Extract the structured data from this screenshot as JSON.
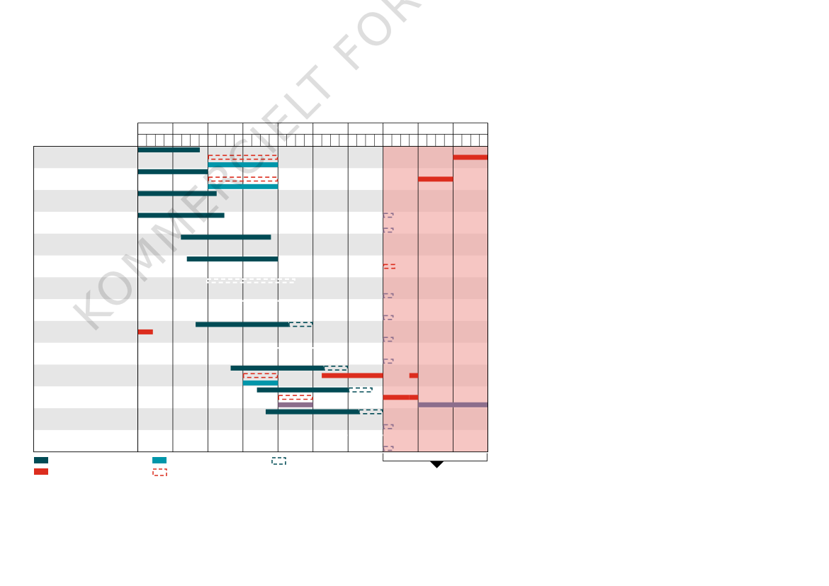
{
  "chart_data": {
    "type": "gantt",
    "title": "",
    "watermark": "KOMMERCIELT FORTROLIGT",
    "period_count": 10,
    "subperiods_per_period": 4,
    "forecast_start_period": 7,
    "period_labels": [],
    "row_labels": [],
    "colors": {
      "dark_teal": "#004b55",
      "light_teal": "#0096aa",
      "red": "#dc2d1e",
      "purple": "#8c6e8c",
      "row_stripe": "#e6e6e6",
      "forecast_shade": "#f0a09b"
    },
    "rows": [
      {
        "bars": [
          {
            "start": 0,
            "end": 1.77,
            "style": "solid",
            "color": "dark_teal",
            "lane": 0
          },
          {
            "start": 2,
            "end": 4,
            "style": "dashed",
            "color": "red",
            "lane": 1
          },
          {
            "start": 9,
            "end": 10,
            "style": "solid",
            "color": "red",
            "lane": 1
          },
          {
            "start": 2,
            "end": 4,
            "style": "solid",
            "color": "light_teal",
            "lane": 2
          }
        ]
      },
      {
        "bars": [
          {
            "start": 0,
            "end": 2,
            "style": "solid",
            "color": "dark_teal",
            "lane": 0
          },
          {
            "start": 2,
            "end": 4,
            "style": "dashed",
            "color": "red",
            "lane": 1
          },
          {
            "start": 8,
            "end": 9,
            "style": "solid",
            "color": "red",
            "lane": 1
          },
          {
            "start": 2,
            "end": 4,
            "style": "solid",
            "color": "light_teal",
            "lane": 2
          }
        ]
      },
      {
        "bars": [
          {
            "start": 0,
            "end": 2.25,
            "style": "solid",
            "color": "dark_teal",
            "lane": 0
          }
        ]
      },
      {
        "bars": [
          {
            "start": 0,
            "end": 2.47,
            "style": "solid",
            "color": "dark_teal",
            "lane": 0
          },
          {
            "start": 7,
            "end": 7.3,
            "style": "dashed",
            "color": "purple",
            "lane": 0
          },
          {
            "start": 7,
            "end": 7.3,
            "style": "dashed",
            "color": "purple",
            "lane": 2
          }
        ]
      },
      {
        "bars": [
          {
            "start": 1.23,
            "end": 3.8,
            "style": "solid",
            "color": "dark_teal",
            "lane": 0
          }
        ]
      },
      {
        "bars": [
          {
            "start": 1.4,
            "end": 4,
            "style": "solid",
            "color": "dark_teal",
            "lane": 0
          },
          {
            "start": 7,
            "end": 7.35,
            "style": "dashed",
            "color": "red",
            "lane": 1
          }
        ]
      },
      {
        "bars": [
          {
            "start": 1.95,
            "end": 4.5,
            "style": "dashed",
            "color": "white",
            "lane": 0
          },
          {
            "start": 7,
            "end": 7.3,
            "style": "dashed",
            "color": "purple",
            "lane": 2
          }
        ]
      },
      {
        "bars": [
          {
            "start": 2.15,
            "end": 4.75,
            "style": "dashed",
            "color": "white",
            "lane": 0
          },
          {
            "start": 7,
            "end": 7.3,
            "style": "dashed",
            "color": "purple",
            "lane": 2
          }
        ]
      },
      {
        "bars": [
          {
            "start": 1.65,
            "end": 4.3,
            "style": "solid",
            "color": "dark_teal",
            "lane": 0
          },
          {
            "start": 4.3,
            "end": 5,
            "style": "dashed",
            "color": "dark_teal",
            "lane": 0
          },
          {
            "start": 0,
            "end": 0.43,
            "style": "solid",
            "color": "red",
            "lane": 1
          },
          {
            "start": 7,
            "end": 7.3,
            "style": "dashed",
            "color": "purple",
            "lane": 2
          }
        ]
      },
      {
        "bars": [
          {
            "start": 3.2,
            "end": 5.75,
            "style": "dashed",
            "color": "white",
            "lane": 0
          },
          {
            "start": 7,
            "end": 7.3,
            "style": "dashed",
            "color": "purple",
            "lane": 2
          }
        ]
      },
      {
        "bars": [
          {
            "start": 2.65,
            "end": 5.3,
            "style": "solid",
            "color": "dark_teal",
            "lane": 0
          },
          {
            "start": 5.3,
            "end": 6,
            "style": "dashed",
            "color": "dark_teal",
            "lane": 0
          },
          {
            "start": 3,
            "end": 4,
            "style": "dashed",
            "color": "red",
            "lane": 1
          },
          {
            "start": 5.25,
            "end": 7,
            "style": "solid",
            "color": "red",
            "lane": 1
          },
          {
            "start": 7.75,
            "end": 8,
            "style": "solid",
            "color": "red",
            "lane": 1
          },
          {
            "start": 3,
            "end": 4,
            "style": "solid",
            "color": "light_teal",
            "lane": 2
          }
        ]
      },
      {
        "bars": [
          {
            "start": 3.4,
            "end": 6,
            "style": "solid",
            "color": "dark_teal",
            "lane": 0
          },
          {
            "start": 6,
            "end": 6.7,
            "style": "dashed",
            "color": "dark_teal",
            "lane": 0
          },
          {
            "start": 4,
            "end": 5,
            "style": "dashed",
            "color": "red",
            "lane": 1
          },
          {
            "start": 7,
            "end": 7.75,
            "style": "solid",
            "color": "red",
            "lane": 1
          },
          {
            "start": 7.75,
            "end": 8,
            "style": "solid",
            "color": "red",
            "lane": 1
          },
          {
            "start": 4,
            "end": 5,
            "style": "solid",
            "color": "purple",
            "lane": 2
          },
          {
            "start": 8,
            "end": 10,
            "style": "solid",
            "color": "purple",
            "lane": 2
          }
        ]
      },
      {
        "bars": [
          {
            "start": 3.65,
            "end": 6.3,
            "style": "solid",
            "color": "dark_teal",
            "lane": 0
          },
          {
            "start": 6.3,
            "end": 7,
            "style": "dashed",
            "color": "dark_teal",
            "lane": 0
          },
          {
            "start": 7,
            "end": 7.3,
            "style": "dashed",
            "color": "purple",
            "lane": 2
          }
        ]
      },
      {
        "bars": [
          {
            "start": 4.4,
            "end": 7,
            "style": "dashed",
            "color": "white",
            "lane": 0
          },
          {
            "start": 7,
            "end": 7.3,
            "style": "dashed",
            "color": "purple",
            "lane": 2
          }
        ]
      }
    ],
    "legend": [
      {
        "symbol": "solid",
        "color": "dark_teal",
        "label": ""
      },
      {
        "symbol": "solid",
        "color": "light_teal",
        "label": ""
      },
      {
        "symbol": "dashed-box",
        "color": "dark_teal",
        "label": ""
      },
      {
        "symbol": "solid",
        "color": "red",
        "label": ""
      },
      {
        "symbol": "dashed-box",
        "color": "red",
        "label": ""
      }
    ],
    "forecast_bracket_label": ""
  }
}
